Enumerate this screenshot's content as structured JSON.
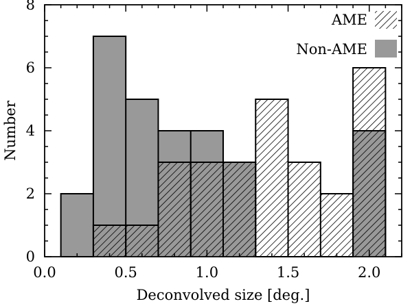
{
  "chart_data": {
    "type": "histogram",
    "xlabel": "Deconvolved size [deg.]",
    "ylabel": "Number",
    "xlim": [
      0.0,
      2.2
    ],
    "ylim": [
      0,
      8
    ],
    "x_ticks": [
      "0.0",
      "0.5",
      "1.0",
      "1.5",
      "2.0"
    ],
    "x_tick_values": [
      0.0,
      0.5,
      1.0,
      1.5,
      2.0
    ],
    "y_ticks": [
      "0",
      "2",
      "4",
      "6",
      "8"
    ],
    "y_tick_values": [
      0,
      2,
      4,
      6,
      8
    ],
    "bin_edges": [
      0.1,
      0.3,
      0.5,
      0.7,
      0.9,
      1.1,
      1.3,
      1.5,
      1.7,
      1.9,
      2.1
    ],
    "series": [
      {
        "name": "Non-AME",
        "counts": [
          2,
          7,
          5,
          4,
          4,
          3,
          0,
          0,
          0,
          4
        ],
        "fill": "#999999",
        "pattern": "solid"
      },
      {
        "name": "AME",
        "counts": [
          0,
          1,
          1,
          3,
          3,
          3,
          5,
          3,
          2,
          6
        ],
        "fill": "none",
        "pattern": "diagonal-hatch"
      }
    ],
    "legend_position": "top-right",
    "grid": false,
    "colors": {
      "non_ame": "#999999",
      "hatch": "#000000",
      "axes": "#000000"
    }
  }
}
